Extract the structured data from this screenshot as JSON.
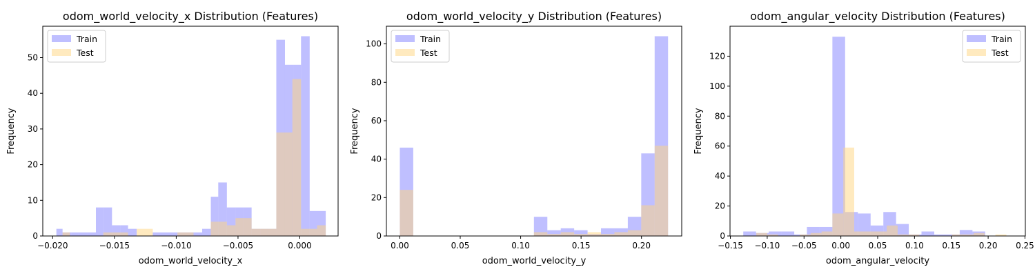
{
  "colors": {
    "train": "#8080ff",
    "test": "#ffd57f",
    "overlap": "#bf957f"
  },
  "chart_data": [
    {
      "type": "histogram",
      "title": "odom_world_velocity_x Distribution (Features)",
      "xlabel": "odom_world_velocity_x",
      "ylabel": "Frequency",
      "xlim": [
        -0.0208,
        0.0031
      ],
      "ylim": [
        0,
        58.8
      ],
      "xticks": [
        -0.02,
        -0.015,
        -0.01,
        -0.005,
        0.0
      ],
      "xtick_labels": [
        "−0.020",
        "−0.015",
        "−0.010",
        "−0.005",
        "0.000"
      ],
      "yticks": [
        0,
        10,
        20,
        30,
        40,
        50
      ],
      "ytick_labels": [
        "0",
        "10",
        "20",
        "30",
        "40",
        "50"
      ],
      "legend": {
        "position": "top-left",
        "entries": [
          "Train",
          "Test"
        ]
      },
      "series": [
        {
          "name": "Train",
          "color": "#8080ff",
          "bins": [
            -0.0197,
            -0.0192,
            -0.0185,
            -0.0179,
            -0.0172,
            -0.0165,
            -0.0159,
            -0.0152,
            -0.0145,
            -0.0139,
            -0.0132,
            -0.0125,
            -0.0119,
            -0.0112,
            -0.0105,
            -0.0099,
            -0.0092,
            -0.0085,
            -0.0079,
            -0.0072,
            -0.0066,
            -0.0059,
            -0.0052,
            -0.0045,
            -0.0039,
            -0.0032,
            -0.0026,
            -0.0019,
            -0.0012,
            -0.0005,
            0.0001,
            0.0008,
            0.0014,
            0.0021
          ],
          "values": [
            2,
            1,
            1,
            1,
            1,
            8,
            8,
            3,
            3,
            2,
            0,
            0,
            1,
            1,
            1,
            1,
            1,
            1,
            2,
            11,
            15,
            8,
            8,
            8,
            2,
            2,
            2,
            55,
            48,
            48,
            56,
            7,
            7
          ]
        },
        {
          "name": "Test",
          "color": "#ffd57f",
          "bins": [
            -0.0192,
            -0.0186,
            -0.0179,
            -0.0172,
            -0.0166,
            -0.0159,
            -0.0152,
            -0.0145,
            -0.0139,
            -0.0132,
            -0.0126,
            -0.0119,
            -0.0112,
            -0.0106,
            -0.0099,
            -0.0092,
            -0.0086,
            -0.0079,
            -0.0072,
            -0.0066,
            -0.0059,
            -0.0052,
            -0.0046,
            -0.0039,
            -0.0032,
            -0.0026,
            -0.0019,
            -0.0012,
            -0.0006,
            0.0001,
            0.0008,
            0.0014,
            0.0021
          ],
          "values": [
            1,
            0,
            0,
            0,
            0,
            1,
            1,
            1,
            0,
            2,
            2,
            0,
            0,
            0,
            1,
            1,
            0,
            0,
            4,
            4,
            3,
            5,
            5,
            2,
            2,
            2,
            29,
            29,
            44,
            2,
            2,
            3
          ]
        }
      ]
    },
    {
      "type": "histogram",
      "title": "odom_world_velocity_y Distribution (Features)",
      "xlabel": "odom_world_velocity_y",
      "ylabel": "Frequency",
      "xlim": [
        -0.0111,
        0.2333
      ],
      "ylim": [
        0,
        109.2
      ],
      "xticks": [
        0.0,
        0.05,
        0.1,
        0.15,
        0.2
      ],
      "xtick_labels": [
        "0.00",
        "0.05",
        "0.10",
        "0.15",
        "0.20"
      ],
      "yticks": [
        0,
        20,
        40,
        60,
        80,
        100
      ],
      "ytick_labels": [
        "0",
        "20",
        "40",
        "60",
        "80",
        "100"
      ],
      "legend": {
        "position": "top-left",
        "entries": [
          "Train",
          "Test"
        ]
      },
      "series": [
        {
          "name": "Train",
          "color": "#8080ff",
          "bins": [
            0.0,
            0.0111,
            0.0222,
            0.0333,
            0.0444,
            0.0555,
            0.0666,
            0.0777,
            0.0888,
            0.0999,
            0.111,
            0.1221,
            0.1332,
            0.1443,
            0.1554,
            0.1665,
            0.1776,
            0.1887,
            0.1998,
            0.2109,
            0.222
          ],
          "values": [
            46,
            0,
            0,
            0,
            0,
            0,
            0,
            0,
            0,
            0,
            10,
            3,
            4,
            3,
            1,
            4,
            4,
            10,
            43,
            104
          ]
        },
        {
          "name": "Test",
          "color": "#ffd57f",
          "bins": [
            0.0,
            0.0111,
            0.0222,
            0.0333,
            0.0444,
            0.0555,
            0.0666,
            0.0777,
            0.0888,
            0.0999,
            0.111,
            0.1221,
            0.1332,
            0.1443,
            0.1554,
            0.1665,
            0.1776,
            0.1887,
            0.1998,
            0.2109,
            0.222
          ],
          "values": [
            24,
            0,
            0,
            0,
            0,
            0,
            0,
            0,
            0,
            0,
            2,
            1,
            2,
            1,
            2,
            1,
            2,
            3,
            16,
            47
          ]
        }
      ]
    },
    {
      "type": "histogram",
      "title": "odom_angular_velocity Distribution (Features)",
      "xlabel": "odom_angular_velocity",
      "ylabel": "Frequency",
      "xlim": [
        -0.1505,
        0.2505
      ],
      "ylim": [
        0,
        140
      ],
      "xticks": [
        -0.15,
        -0.1,
        -0.05,
        0.0,
        0.05,
        0.1,
        0.15,
        0.2,
        0.25
      ],
      "xtick_labels": [
        "−0.15",
        "−0.10",
        "−0.05",
        "0.00",
        "0.05",
        "0.10",
        "0.15",
        "0.20",
        "0.25"
      ],
      "yticks": [
        0,
        20,
        40,
        60,
        80,
        100,
        120
      ],
      "ytick_labels": [
        "0",
        "20",
        "40",
        "60",
        "80",
        "100",
        "120"
      ],
      "legend": {
        "position": "top-right",
        "entries": [
          "Train",
          "Test"
        ]
      },
      "series": [
        {
          "name": "Train",
          "color": "#8080ff",
          "bins": [
            -0.1325,
            -0.1152,
            -0.0979,
            -0.0806,
            -0.0633,
            -0.0461,
            -0.0288,
            -0.0115,
            0.0058,
            0.0231,
            0.0404,
            0.0577,
            0.075,
            0.0922,
            0.1095,
            0.1268,
            0.1441,
            0.1614,
            0.1787,
            0.196,
            0.2133
          ],
          "values": [
            3,
            2,
            3,
            3,
            1,
            6,
            6,
            133,
            16,
            15,
            7,
            16,
            8,
            1,
            3,
            1,
            1,
            4,
            3,
            0
          ]
        },
        {
          "name": "Test",
          "color": "#ffd57f",
          "bins": [
            -0.1148,
            -0.1,
            -0.0853,
            -0.0705,
            -0.0557,
            -0.041,
            -0.0262,
            -0.0115,
            0.0033,
            0.0181,
            0.0328,
            0.0476,
            0.0623,
            0.0771,
            0.0919,
            0.1066,
            0.1214,
            0.1361,
            0.1509,
            0.1657,
            0.1804,
            0.1952,
            0.2099,
            0.2247
          ],
          "values": [
            2,
            1,
            0,
            0,
            1,
            2,
            3,
            15,
            59,
            3,
            3,
            3,
            7,
            1,
            1,
            0,
            0,
            0,
            1,
            1,
            2,
            0,
            1
          ]
        }
      ]
    }
  ]
}
